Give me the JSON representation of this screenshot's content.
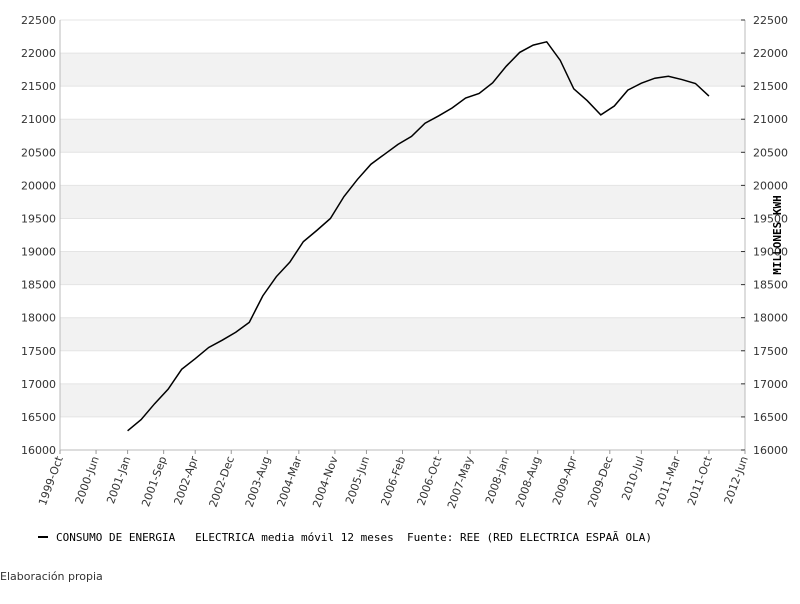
{
  "chart_data": {
    "type": "line",
    "x": [
      "2001-01",
      "2001-04",
      "2001-07",
      "2001-10",
      "2002-01",
      "2002-04",
      "2002-07",
      "2002-10",
      "2003-01",
      "2003-04",
      "2003-07",
      "2003-10",
      "2004-01",
      "2004-04",
      "2004-07",
      "2004-10",
      "2005-01",
      "2005-04",
      "2005-07",
      "2005-10",
      "2006-01",
      "2006-04",
      "2006-07",
      "2006-10",
      "2007-01",
      "2007-04",
      "2007-07",
      "2007-10",
      "2008-01",
      "2008-04",
      "2008-07",
      "2008-10",
      "2009-01",
      "2009-04",
      "2009-07",
      "2009-10",
      "2010-01",
      "2010-04",
      "2010-07",
      "2010-10",
      "2011-01",
      "2011-04",
      "2011-07",
      "2011-10"
    ],
    "series": [
      {
        "name": "CONSUMO DE ENERGIA   ELECTRICA media móvil 12 meses  Fuente: REE (RED ELECTRICA ESPAÃ OLA)",
        "color": "#000000",
        "values": [
          16290,
          16460,
          16700,
          16920,
          17220,
          17380,
          17550,
          17660,
          17780,
          17930,
          18330,
          18620,
          18840,
          19150,
          19320,
          19500,
          19830,
          20090,
          20320,
          20470,
          20620,
          20740,
          20940,
          21050,
          21170,
          21320,
          21390,
          21550,
          21800,
          22010,
          22120,
          22170,
          21890,
          21460,
          21280,
          21065,
          21200,
          21440,
          21545,
          21620,
          21650,
          21600,
          21540,
          21350
        ]
      }
    ],
    "xlim": [
      "1999-10",
      "2012-06"
    ],
    "xticks": [
      {
        "value": "1999-10",
        "label": "1999-Oct"
      },
      {
        "value": "2000-06",
        "label": "2000-Jun"
      },
      {
        "value": "2001-01",
        "label": "2001-Jan"
      },
      {
        "value": "2001-09",
        "label": "2001-Sep"
      },
      {
        "value": "2002-04",
        "label": "2002-Apr"
      },
      {
        "value": "2002-12",
        "label": "2002-Dec"
      },
      {
        "value": "2003-08",
        "label": "2003-Aug"
      },
      {
        "value": "2004-03",
        "label": "2004-Mar"
      },
      {
        "value": "2004-11",
        "label": "2004-Nov"
      },
      {
        "value": "2005-06",
        "label": "2005-Jun"
      },
      {
        "value": "2006-02",
        "label": "2006-Feb"
      },
      {
        "value": "2006-10",
        "label": "2006-Oct"
      },
      {
        "value": "2007-05",
        "label": "2007-May"
      },
      {
        "value": "2008-01",
        "label": "2008-Jan"
      },
      {
        "value": "2008-08",
        "label": "2008-Aug"
      },
      {
        "value": "2009-04",
        "label": "2009-Apr"
      },
      {
        "value": "2009-12",
        "label": "2009-Dec"
      },
      {
        "value": "2010-07",
        "label": "2010-Jul"
      },
      {
        "value": "2011-03",
        "label": "2011-Mar"
      },
      {
        "value": "2011-10",
        "label": "2011-Oct"
      },
      {
        "value": "2012-06",
        "label": "2012-Jun"
      }
    ],
    "ylim": [
      16000,
      22500
    ],
    "yticks": [
      16000,
      16500,
      17000,
      17500,
      18000,
      18500,
      19000,
      19500,
      20000,
      20500,
      21000,
      21500,
      22000,
      22500
    ],
    "y2lim": [
      16000,
      22500
    ],
    "y2ticks": [
      16000,
      16500,
      17000,
      17500,
      18000,
      18500,
      19000,
      19500,
      20000,
      20500,
      21000,
      21500,
      22000,
      22500
    ],
    "y2label": "MILLONES KWH",
    "grid": true,
    "band_color": "#f2f2f2",
    "legend": "bottom-left"
  },
  "footer": "Elaboración propia"
}
